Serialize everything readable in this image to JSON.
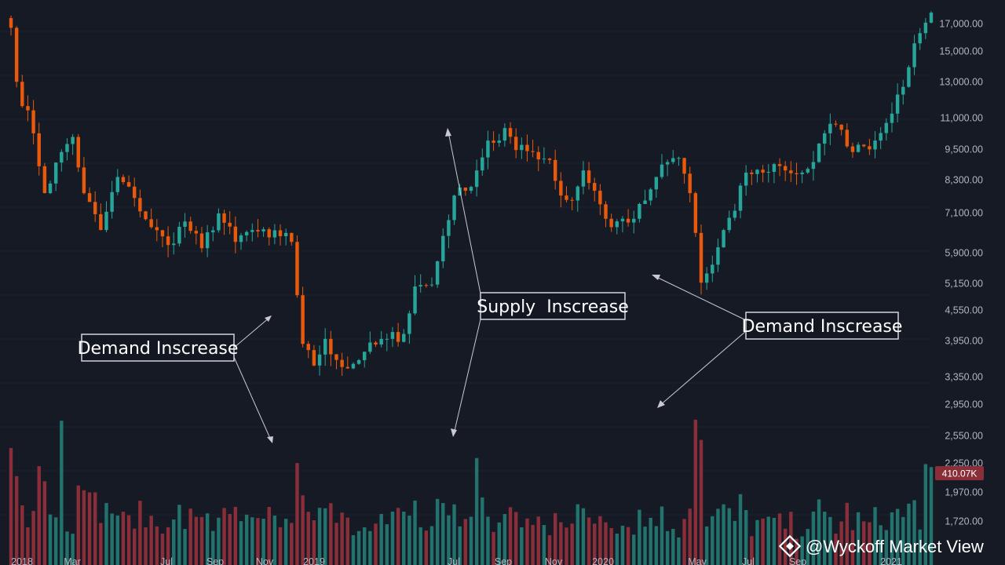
{
  "chart_data": {
    "type": "candlestick",
    "y_scale": "log",
    "price_ylim": [
      3000,
      21000
    ],
    "y_ticks": [
      "17,000.00",
      "15,000.00",
      "13,000.00",
      "11,000.00",
      "9,500.00",
      "8,300.00",
      "7,100.00",
      "5,900.00",
      "5,150.00",
      "4,550.00",
      "3,950.00",
      "3,350.00",
      "2,950.00",
      "2,550.00",
      "2,250.00",
      "1,970.00",
      "1,720.00"
    ],
    "x_ticks": [
      "2018",
      "Mar",
      "Jul",
      "Sep",
      "Nov",
      "2019",
      "Jul",
      "Sep",
      "Nov",
      "2020",
      "May",
      "Jul",
      "Sep",
      "2021"
    ],
    "last_volume_label": "410.07K",
    "annotations": [
      {
        "label": "Demand Inscrease"
      },
      {
        "label": "Supply  Inscrease"
      },
      {
        "label": "Demand Inscrease"
      }
    ],
    "price_anchors": [
      [
        0,
        19000
      ],
      [
        1,
        14500
      ],
      [
        4,
        11200
      ],
      [
        6,
        8300
      ],
      [
        9,
        10200
      ],
      [
        11,
        11000
      ],
      [
        13,
        8300
      ],
      [
        16,
        6900
      ],
      [
        19,
        9000
      ],
      [
        22,
        8100
      ],
      [
        25,
        7000
      ],
      [
        28,
        6400
      ],
      [
        31,
        7200
      ],
      [
        34,
        6300
      ],
      [
        37,
        7500
      ],
      [
        40,
        6500
      ],
      [
        43,
        6900
      ],
      [
        46,
        6650
      ],
      [
        49,
        6800
      ],
      [
        50,
        6500
      ],
      [
        52,
        3900
      ],
      [
        54,
        3500
      ],
      [
        56,
        4000
      ],
      [
        58,
        3600
      ],
      [
        60,
        3450
      ],
      [
        63,
        3750
      ],
      [
        67,
        4000
      ],
      [
        70,
        4100
      ],
      [
        72,
        5200
      ],
      [
        75,
        5250
      ],
      [
        77,
        6700
      ],
      [
        79,
        8200
      ],
      [
        81,
        8400
      ],
      [
        83,
        9300
      ],
      [
        85,
        10800
      ],
      [
        87,
        10800
      ],
      [
        88,
        11500
      ],
      [
        90,
        10300
      ],
      [
        93,
        10200
      ],
      [
        96,
        9800
      ],
      [
        98,
        8200
      ],
      [
        100,
        8000
      ],
      [
        102,
        9300
      ],
      [
        104,
        8400
      ],
      [
        106,
        7300
      ],
      [
        107,
        7000
      ],
      [
        109,
        7300
      ],
      [
        111,
        7300
      ],
      [
        113,
        8000
      ],
      [
        115,
        9000
      ],
      [
        117,
        9700
      ],
      [
        119,
        9900
      ],
      [
        121,
        8300
      ],
      [
        122,
        6800
      ],
      [
        123,
        5300
      ],
      [
        125,
        5800
      ],
      [
        127,
        6900
      ],
      [
        129,
        7600
      ],
      [
        131,
        9200
      ],
      [
        134,
        9200
      ],
      [
        136,
        9600
      ],
      [
        138,
        9300
      ],
      [
        141,
        9200
      ],
      [
        143,
        9700
      ],
      [
        145,
        11200
      ],
      [
        147,
        11700
      ],
      [
        148,
        11400
      ],
      [
        150,
        10200
      ],
      [
        152,
        10500
      ],
      [
        154,
        10800
      ],
      [
        156,
        11800
      ],
      [
        158,
        13600
      ],
      [
        160,
        15600
      ],
      [
        162,
        18500
      ],
      [
        163,
        19500
      ],
      [
        164,
        20500
      ]
    ],
    "volume_spikes": [
      [
        0,
        2620
      ],
      [
        5,
        2440
      ],
      [
        6,
        2290
      ],
      [
        9,
        2890
      ],
      [
        14,
        2180
      ],
      [
        15,
        2180
      ],
      [
        51,
        2470
      ],
      [
        52,
        2150
      ],
      [
        83,
        2520
      ],
      [
        84,
        2130
      ],
      [
        122,
        2900
      ],
      [
        123,
        2700
      ],
      [
        163,
        2460
      ],
      [
        164,
        2430
      ]
    ],
    "volume_ylim": [
      1600,
      3000
    ]
  },
  "watermark": {
    "text": "@Wyckoff Market View"
  },
  "colors": {
    "up": "#26a69a",
    "down": "#e8590c",
    "vol_up": "#22736d",
    "vol_down": "#8a2e3a",
    "bg": "#161a25"
  }
}
